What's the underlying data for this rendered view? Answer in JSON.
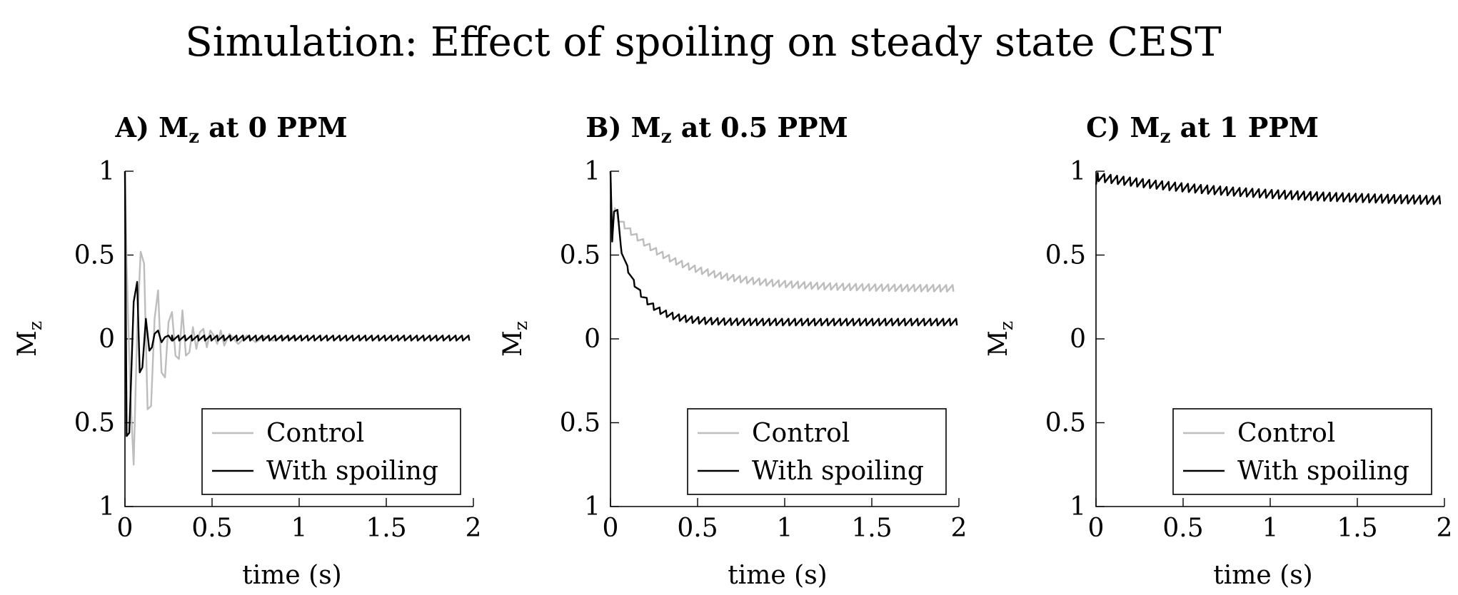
{
  "figure": {
    "title": "Simulation: Effect of spoiling on steady state CEST"
  },
  "chart_data": [
    {
      "type": "line",
      "title": {
        "prefix": "A) M",
        "sub": "z",
        "suffix": " at 0 PPM"
      },
      "ylabel": {
        "main": "M",
        "sub": "z"
      },
      "xlabel": "time (s)",
      "xlim": [
        0,
        2
      ],
      "ylim": [
        -1,
        1
      ],
      "xticks": [
        0,
        0.5,
        1,
        1.5,
        2
      ],
      "xtick_labels": [
        "0",
        "0.5",
        "1",
        "1.5",
        "2"
      ],
      "yticks": [
        1,
        0.5,
        0,
        -0.5,
        -1
      ],
      "ytick_labels": [
        "1",
        "0.5",
        "0",
        "0.5",
        "1"
      ],
      "legend": {
        "position": "bottom-right",
        "entries": [
          "Control",
          "With spoiling"
        ]
      },
      "series": [
        {
          "name": "Control",
          "color": "#bdbdbd",
          "x": [
            0,
            0.01,
            0.03,
            0.05,
            0.07,
            0.09,
            0.11,
            0.13,
            0.15,
            0.17,
            0.19,
            0.21,
            0.23,
            0.25,
            0.27,
            0.29,
            0.31,
            0.33,
            0.35,
            0.37,
            0.39,
            0.41,
            0.43,
            0.45,
            0.47,
            0.49,
            0.51,
            0.53,
            0.55,
            0.57,
            0.6,
            0.65,
            0.7,
            0.75,
            0.8,
            0.85,
            0.9,
            1.0
          ],
          "y": [
            1,
            0.45,
            -0.3,
            -0.75,
            0.05,
            0.52,
            0.45,
            -0.42,
            -0.4,
            0.12,
            0.29,
            -0.2,
            -0.23,
            0.1,
            0.16,
            -0.1,
            -0.12,
            0.17,
            -0.1,
            -0.08,
            0.07,
            -0.06,
            0.04,
            0.06,
            -0.05,
            0.05,
            0.02,
            -0.03,
            0.05,
            -0.04,
            0.03,
            -0.03,
            0.02,
            -0.02,
            0.015,
            -0.01,
            0.01,
            0
          ]
        },
        {
          "name": "With spoiling",
          "color": "#000000",
          "sawtooth": {
            "start": 0.27,
            "end": 2.0,
            "period": 0.037,
            "lower": -0.01,
            "upper": 0.02
          },
          "x": [
            0,
            0.01,
            0.025,
            0.05,
            0.07,
            0.085,
            0.1,
            0.12,
            0.14,
            0.155,
            0.17,
            0.19,
            0.21,
            0.23,
            0.25,
            0.27
          ],
          "y": [
            1,
            -0.58,
            -0.56,
            0.22,
            0.34,
            -0.2,
            -0.17,
            0.12,
            -0.07,
            -0.05,
            0.03,
            0.05,
            -0.02,
            0.01,
            0.02,
            -0.01
          ]
        }
      ]
    },
    {
      "type": "line",
      "title": {
        "prefix": "B) M",
        "sub": "z",
        "suffix": " at 0.5 PPM"
      },
      "ylabel": {
        "main": "M",
        "sub": "z"
      },
      "xlabel": "time (s)",
      "xlim": [
        0,
        2
      ],
      "ylim": [
        -1,
        1
      ],
      "xticks": [
        0,
        0.5,
        1,
        1.5,
        2
      ],
      "xtick_labels": [
        "0",
        "0.5",
        "1",
        "1.5",
        "2"
      ],
      "yticks": [
        1,
        0.5,
        0,
        -0.5,
        -1
      ],
      "ytick_labels": [
        "1",
        "0.5",
        "0",
        "0.5",
        "1"
      ],
      "legend": {
        "position": "bottom-right",
        "entries": [
          "Control",
          "With spoiling"
        ]
      },
      "series": [
        {
          "name": "Control",
          "color": "#bdbdbd",
          "sawtooth": {
            "start": 0.04,
            "end": 2.0,
            "period": 0.037,
            "drop": 0.04,
            "start_level": 0.74,
            "steady": 0.32,
            "tau": 0.35
          },
          "x": [
            0,
            0.01,
            0.025,
            0.04
          ],
          "y": [
            1,
            0.62,
            0.78,
            0.74
          ]
        },
        {
          "name": "With spoiling",
          "color": "#000000",
          "sawtooth": {
            "start": 0.06,
            "end": 2.0,
            "period": 0.037,
            "drop": 0.04,
            "start_level": 0.55,
            "steady": 0.12,
            "tau": 0.12
          },
          "x": [
            0,
            0.01,
            0.02,
            0.04,
            0.06
          ],
          "y": [
            1,
            0.58,
            0.76,
            0.77,
            0.55
          ]
        }
      ]
    },
    {
      "type": "line",
      "title": {
        "prefix": "C) M",
        "sub": "z",
        "suffix": " at 1 PPM"
      },
      "ylabel": {
        "main": "M",
        "sub": "z"
      },
      "xlabel": "time (s)",
      "xlim": [
        0,
        2
      ],
      "ylim": [
        -1,
        1
      ],
      "xticks": [
        0,
        0.5,
        1,
        1.5,
        2
      ],
      "xtick_labels": [
        "0",
        "0.5",
        "1",
        "1.5",
        "2"
      ],
      "yticks": [
        1,
        0.5,
        0,
        -0.5,
        -1
      ],
      "ytick_labels": [
        "1",
        "0.5",
        "0",
        "0.5",
        "1"
      ],
      "legend": {
        "position": "bottom-right",
        "entries": [
          "Control",
          "With spoiling"
        ]
      },
      "series": [
        {
          "name": "Control",
          "color": "#bdbdbd",
          "sawtooth": {
            "start": 0.01,
            "end": 2.0,
            "period": 0.037,
            "drop": 0.05,
            "start_level": 0.99,
            "steady": 0.83,
            "tau": 1.0
          },
          "x": [
            0,
            0.01
          ],
          "y": [
            0.92,
            0.99
          ]
        },
        {
          "name": "With spoiling",
          "color": "#000000",
          "sawtooth": {
            "start": 0.01,
            "end": 2.0,
            "period": 0.037,
            "drop": 0.05,
            "start_level": 0.99,
            "steady": 0.83,
            "tau": 1.0
          },
          "x": [
            0,
            0.01
          ],
          "y": [
            0.92,
            0.99
          ]
        }
      ]
    }
  ]
}
